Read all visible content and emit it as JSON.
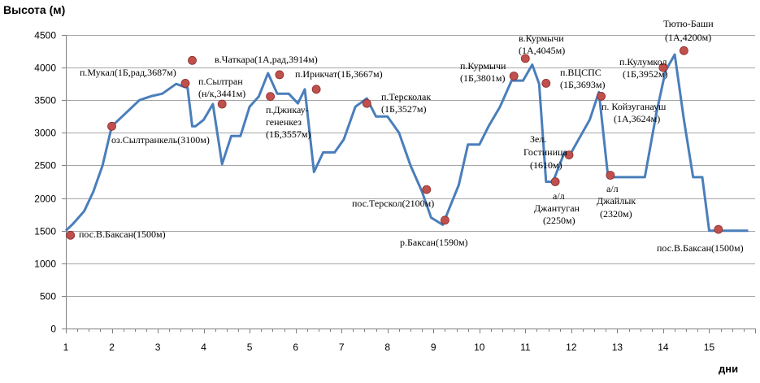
{
  "chart_data": {
    "type": "line",
    "ylabel": "Высота (м)",
    "xlabel": "дни",
    "xlim": [
      1,
      16
    ],
    "ylim": [
      0,
      4500
    ],
    "yticks": [
      0,
      500,
      1000,
      1500,
      2000,
      2500,
      3000,
      3500,
      4000,
      4500
    ],
    "xticks": [
      1,
      2,
      3,
      4,
      5,
      6,
      7,
      8,
      9,
      10,
      11,
      12,
      13,
      14,
      15
    ],
    "grid": "horizontal",
    "colors": {
      "line": "#4a7ebb",
      "marker": "#c0504d"
    },
    "series": [
      {
        "x": [
          1.0,
          1.15,
          1.4,
          1.6,
          1.8,
          2.0,
          2.3,
          2.6,
          2.85,
          3.1,
          3.4,
          3.65,
          3.75,
          3.82,
          4.0,
          4.2,
          4.4,
          4.6,
          4.8,
          5.0,
          5.2,
          5.4,
          5.6,
          5.85,
          6.05,
          6.2,
          6.4,
          6.6,
          6.85,
          7.05,
          7.3,
          7.55,
          7.75,
          8.0,
          8.25,
          8.5,
          8.75,
          8.95,
          9.2,
          9.55,
          9.75,
          10.0,
          10.2,
          10.45,
          10.7,
          10.95,
          11.15,
          11.3,
          11.45,
          11.6,
          11.85,
          12.0,
          12.2,
          12.4,
          12.6,
          12.8,
          13.0,
          13.2,
          13.4,
          13.6,
          13.85,
          14.05,
          14.25,
          14.45,
          14.65,
          14.85,
          15.0,
          15.2,
          15.4,
          15.6,
          15.85
        ],
        "y": [
          1500,
          1600,
          1800,
          2100,
          2500,
          3100,
          3300,
          3500,
          3560,
          3600,
          3750,
          3687,
          3100,
          3100,
          3200,
          3441,
          2520,
          2950,
          2950,
          3400,
          3557,
          3914,
          3600,
          3600,
          3450,
          3667,
          2400,
          2700,
          2700,
          2900,
          3400,
          3527,
          3250,
          3250,
          3000,
          2500,
          2100,
          1700,
          1590,
          2200,
          2820,
          2820,
          3100,
          3400,
          3801,
          3801,
          4045,
          3750,
          2250,
          2250,
          2700,
          2700,
          2950,
          3200,
          3624,
          2320,
          2320,
          2320,
          2320,
          2320,
          3300,
          3952,
          4200,
          3200,
          2320,
          2320,
          1500,
          1500,
          1500,
          1500,
          1500
        ]
      }
    ],
    "annotations": [
      {
        "label": "пос.В.Баксан(1500м)",
        "x": 1.1,
        "y": 1430
      },
      {
        "label": "оз.Сылтранкель(3100м)",
        "x": 2.0,
        "y": 3100
      },
      {
        "label": "п.Мукал(1Б,рад,3687м)",
        "x": 3.6,
        "y": 3760
      },
      {
        "label": "в.Чаткара(1А,рад,3914м)",
        "x": 3.75,
        "y": 4110
      },
      {
        "label": "п.Сылтран",
        "x": 4.4,
        "y": 3441
      },
      {
        "label": "(н/к,3441м)",
        "x": 4.4,
        "y": 3441
      },
      {
        "label": "п.Джикау-",
        "x": 5.45,
        "y": 3557
      },
      {
        "label": "гененкез",
        "x": 5.45,
        "y": 3557
      },
      {
        "label": "(1Б,3557м)",
        "x": 5.45,
        "y": 3557
      },
      {
        "label": "п.Ирикчат(1Б,3667м)",
        "x": 6.45,
        "y": 3870
      },
      {
        "label": "п.Терсколак",
        "x": 7.55,
        "y": 3450
      },
      {
        "label": "(1Б,3527м)",
        "x": 7.55,
        "y": 3450
      },
      {
        "label": "пос.Терскол(2100м)",
        "x": 8.85,
        "y": 2130
      },
      {
        "label": "р.Баксан(1590м)",
        "x": 9.25,
        "y": 1660
      },
      {
        "label": "п.Курмычи",
        "x": 10.75,
        "y": 3870
      },
      {
        "label": "(1Б,3801м)",
        "x": 10.75,
        "y": 3870
      },
      {
        "label": "в.Курмычи",
        "x": 11.0,
        "y": 4140
      },
      {
        "label": "(1А,4045м)",
        "x": 11.0,
        "y": 4140
      },
      {
        "label": "Зел.",
        "x": 11.55,
        "y": 2250
      },
      {
        "label": "Гостиница",
        "x": 11.55,
        "y": 2250
      },
      {
        "label": "(1610м)",
        "x": 11.55,
        "y": 2250
      },
      {
        "label": "а/л",
        "x": 11.65,
        "y": 2250
      },
      {
        "label": "Джантуган",
        "x": 11.65,
        "y": 2250
      },
      {
        "label": "(2250м)",
        "x": 11.65,
        "y": 2250
      },
      {
        "label": "п.ВЦСПС",
        "x": 11.95,
        "y": 3760
      },
      {
        "label": "(1Б,3693м)",
        "x": 11.95,
        "y": 3760
      },
      {
        "label": "п. Койзуганауш",
        "x": 12.65,
        "y": 3560
      },
      {
        "label": "(1А,3624м)",
        "x": 12.65,
        "y": 3560
      },
      {
        "label": "а/л",
        "x": 12.85,
        "y": 2350
      },
      {
        "label": "Джайлык",
        "x": 12.85,
        "y": 2350
      },
      {
        "label": "(2320м)",
        "x": 12.85,
        "y": 2350
      },
      {
        "label": "п.Кулумкол",
        "x": 14.0,
        "y": 4000
      },
      {
        "label": "(1Б,3952м)",
        "x": 14.0,
        "y": 4000
      },
      {
        "label": "Тютю-Баши",
        "x": 14.45,
        "y": 4260
      },
      {
        "label": "(1А,4200м)",
        "x": 14.45,
        "y": 4260
      },
      {
        "label": "пос.В.Баксан(1500м)",
        "x": 15.2,
        "y": 1520
      }
    ],
    "markers": [
      {
        "x": 1.1,
        "y": 1430
      },
      {
        "x": 2.0,
        "y": 3100
      },
      {
        "x": 3.6,
        "y": 3760
      },
      {
        "x": 3.75,
        "y": 4110
      },
      {
        "x": 4.4,
        "y": 3441
      },
      {
        "x": 5.45,
        "y": 3557
      },
      {
        "x": 5.65,
        "y": 3890
      },
      {
        "x": 6.45,
        "y": 3667
      },
      {
        "x": 7.55,
        "y": 3450
      },
      {
        "x": 8.85,
        "y": 2130
      },
      {
        "x": 9.25,
        "y": 1660
      },
      {
        "x": 10.75,
        "y": 3870
      },
      {
        "x": 11.0,
        "y": 4140
      },
      {
        "x": 11.45,
        "y": 3760
      },
      {
        "x": 11.65,
        "y": 2250
      },
      {
        "x": 11.95,
        "y": 2660
      },
      {
        "x": 12.65,
        "y": 3560
      },
      {
        "x": 12.85,
        "y": 2350
      },
      {
        "x": 14.0,
        "y": 4000
      },
      {
        "x": 14.45,
        "y": 4260
      },
      {
        "x": 15.2,
        "y": 1520
      }
    ]
  }
}
